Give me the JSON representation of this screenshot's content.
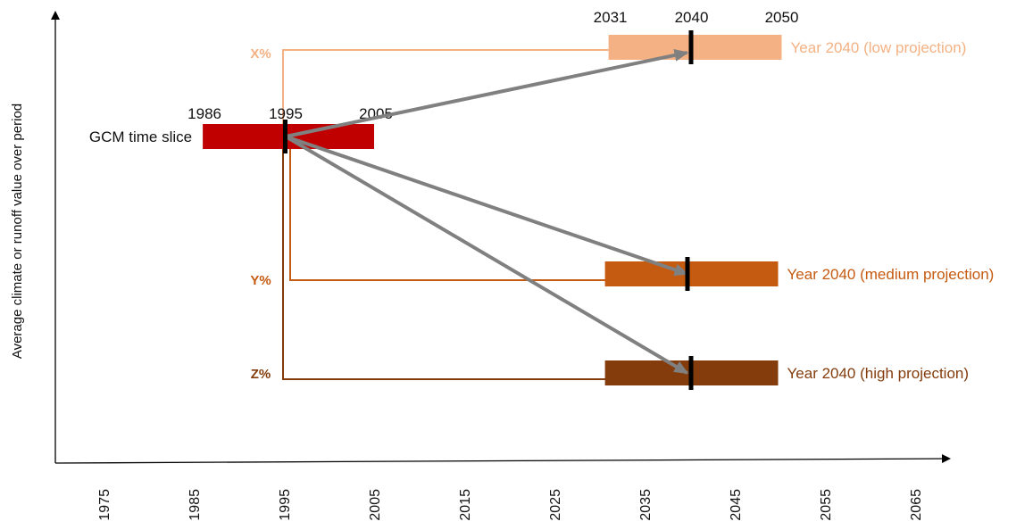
{
  "y_axis_label": "Average climate or runoff value over period",
  "x_ticks": [
    "1975",
    "1985",
    "1995",
    "2005",
    "2015",
    "2025",
    "2035",
    "2045",
    "2055",
    "2065"
  ],
  "baseline": {
    "label": "GCM time slice",
    "start_label": "1986",
    "center_label": "1995",
    "end_label": "2005",
    "start_year": 1986,
    "center_year": 1995,
    "end_year": 2005,
    "color": "#C00000"
  },
  "projections": [
    {
      "pct_label": "X%",
      "label": "Year 2040 (low projection)",
      "start_label": "2031",
      "center_label": "2040",
      "end_label": "2050",
      "start_year": 2031,
      "center_year": 2040,
      "end_year": 2050,
      "color": "#F4B183"
    },
    {
      "pct_label": "Y%",
      "label": "Year 2040 (medium projection)",
      "start_year": 2031,
      "center_year": 2040,
      "end_year": 2050,
      "color": "#C55A11"
    },
    {
      "pct_label": "Z%",
      "label": "Year 2040 (high projection)",
      "start_year": 2031,
      "center_year": 2040,
      "end_year": 2050,
      "color": "#843C0C"
    }
  ],
  "colors": {
    "axis": "#000000",
    "arrow": "#808080",
    "marker": "#000000"
  }
}
